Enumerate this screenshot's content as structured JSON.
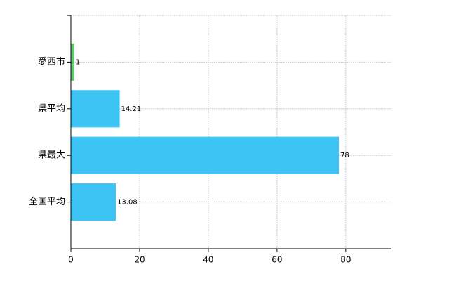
{
  "chart_data": {
    "type": "bar",
    "orientation": "horizontal",
    "categories": [
      "愛西市",
      "県平均",
      "県最大",
      "全国平均"
    ],
    "values": [
      1,
      14.21,
      78,
      13.08
    ],
    "colors": [
      "#66cc77",
      "#3ec4f4",
      "#3ec4f4",
      "#3ec4f4"
    ],
    "xlim": [
      0,
      93.3
    ],
    "xticks": [
      0,
      20,
      40,
      60,
      80
    ],
    "grid": true
  }
}
